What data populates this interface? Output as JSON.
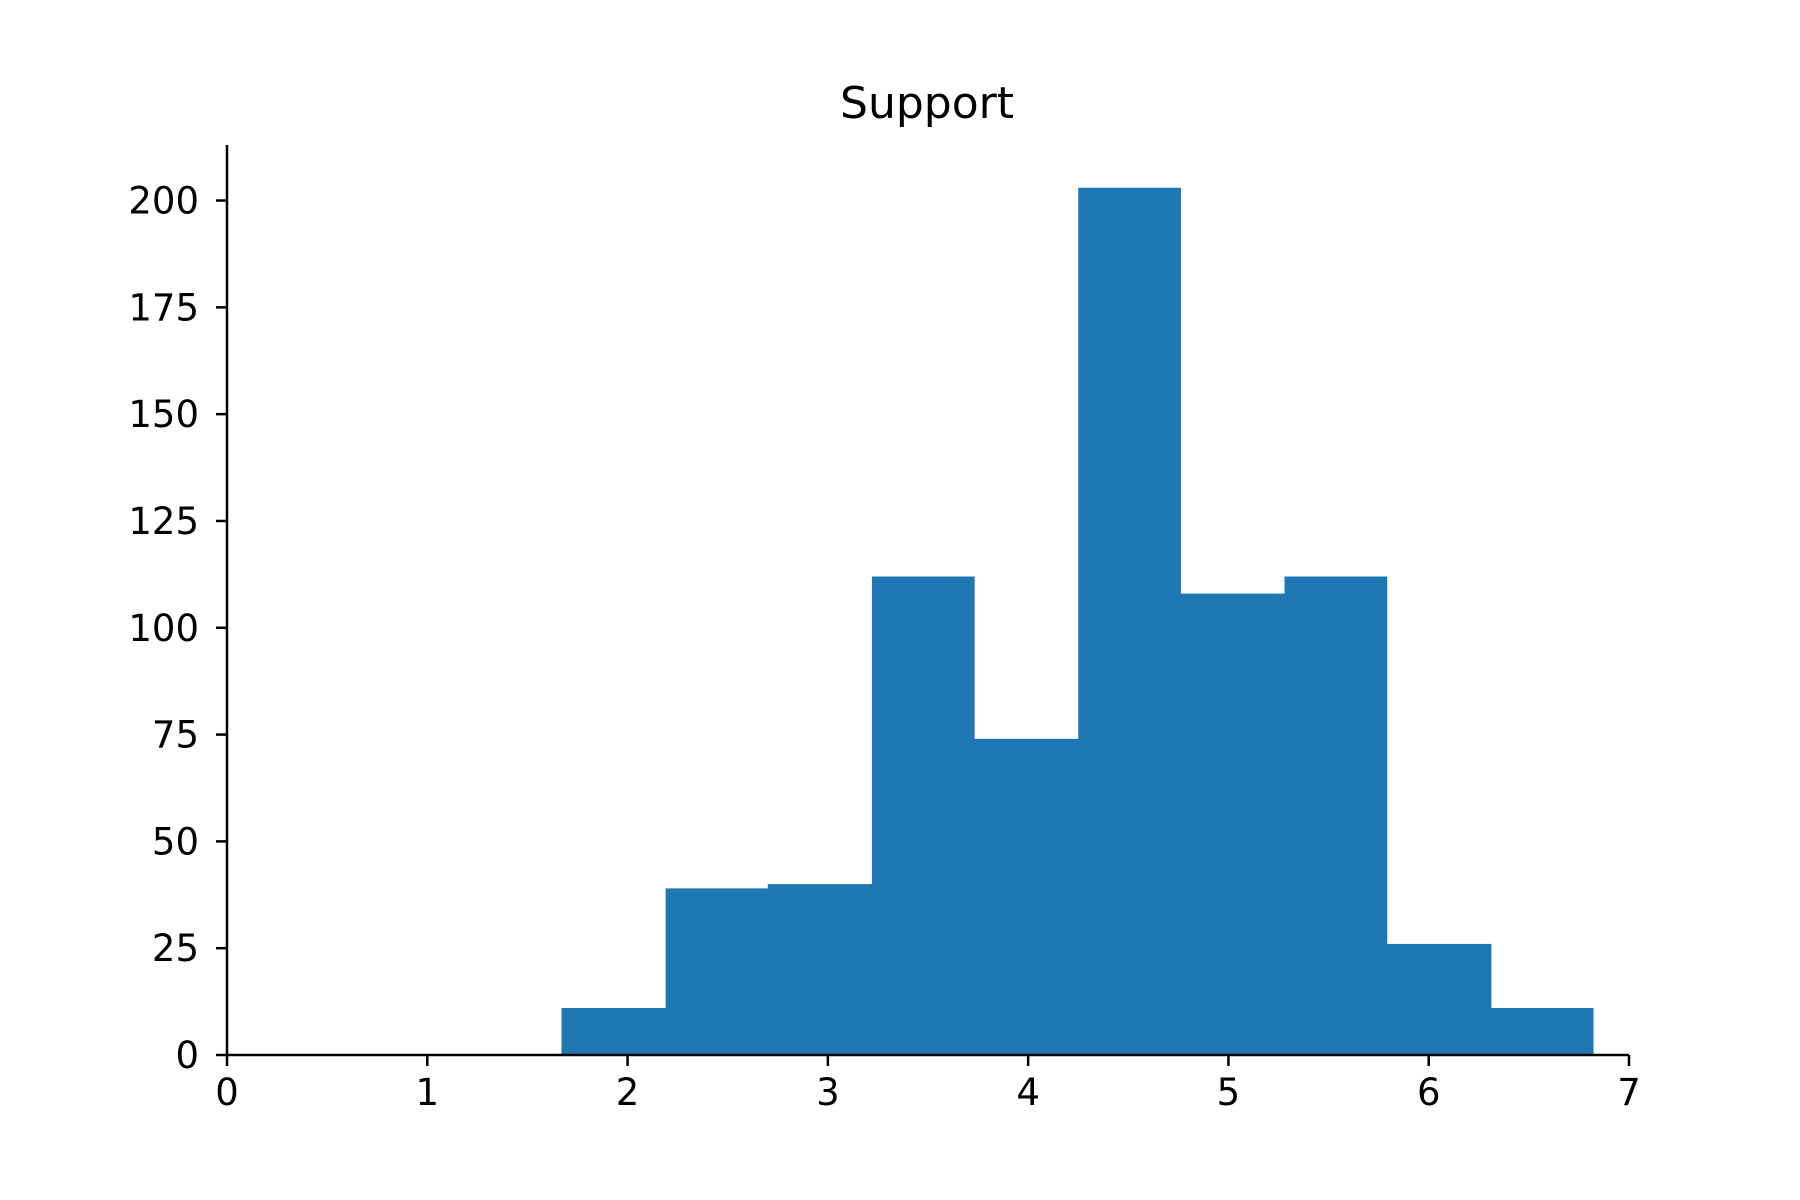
{
  "chart_data": {
    "type": "bar",
    "subtype": "histogram",
    "title": "Support",
    "xlabel": "",
    "ylabel": "",
    "xlim": [
      0,
      7
    ],
    "ylim": [
      0,
      213
    ],
    "x_ticks": [
      "0",
      "1",
      "2",
      "3",
      "4",
      "5",
      "6",
      "7"
    ],
    "y_ticks": [
      "0",
      "25",
      "50",
      "75",
      "100",
      "125",
      "150",
      "175",
      "200"
    ],
    "bins": [
      {
        "start": 1.67,
        "end": 2.19,
        "count": 11
      },
      {
        "start": 2.19,
        "end": 2.7,
        "count": 39
      },
      {
        "start": 2.7,
        "end": 3.22,
        "count": 40
      },
      {
        "start": 3.22,
        "end": 3.73,
        "count": 112
      },
      {
        "start": 3.73,
        "end": 4.25,
        "count": 74
      },
      {
        "start": 4.25,
        "end": 4.76,
        "count": 203
      },
      {
        "start": 4.76,
        "end": 5.28,
        "count": 108
      },
      {
        "start": 5.28,
        "end": 5.79,
        "count": 112
      },
      {
        "start": 5.79,
        "end": 6.31,
        "count": 26
      },
      {
        "start": 6.31,
        "end": 6.82,
        "count": 11
      }
    ],
    "bar_color": "#1f77b4",
    "grid": false,
    "legend": "none"
  }
}
